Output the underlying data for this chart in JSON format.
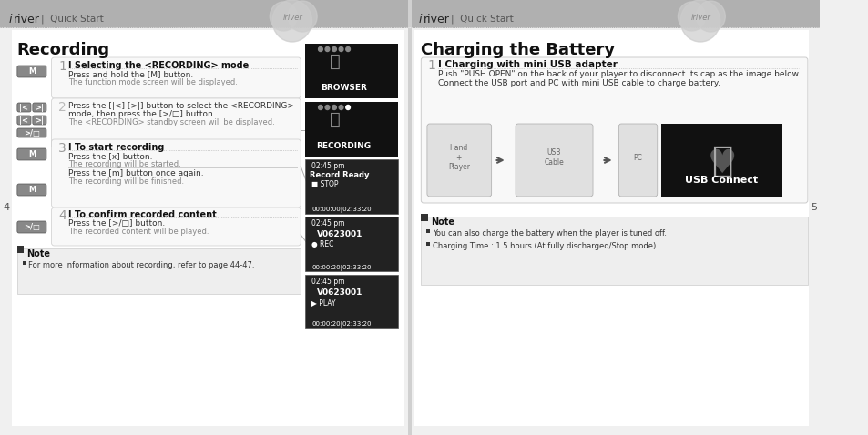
{
  "bg_color": "#f0f0f0",
  "header_color": "#a0a0a0",
  "header_text_color": "#333333",
  "page_bg": "#ffffff",
  "left_page_num": "4",
  "right_page_num": "5",
  "brand": "iriver",
  "header_subtitle": "Quick Start",
  "left_title": "Recording",
  "right_title": "Charging the Battery",
  "left_steps": [
    {
      "num": "1",
      "header": "I Selecting the <RECORDING> mode",
      "lines": [
        "Press and hold the [M] button.",
        "The function mode screen will be displayed."
      ]
    },
    {
      "num": "2",
      "header": null,
      "lines": [
        "Press the [|<] [>|] button to select the <RECORDING>",
        "mode, then press the [>/□] button.",
        "The <RECORDING> standby screen will be displayed."
      ]
    },
    {
      "num": "3",
      "header": "I To start recording",
      "lines": [
        "Press the [x] button.",
        "The recording will be started.",
        "",
        "Press the [m] button once again.",
        "The recording will be finished."
      ]
    },
    {
      "num": "4",
      "header": "I To confirm recorded content",
      "lines": [
        "Press the [>/□] button.",
        "The recorded content will be played."
      ]
    }
  ],
  "left_note": "Note",
  "left_note_bullet": "For more information about recording, refer to page 44-47.",
  "right_step": {
    "num": "1",
    "header": "I Charging with mini USB adapter",
    "lines": [
      "Push \"PUSH OPEN\" on the back of your player to disconnect its cap as the image below.",
      "Connect the USB port and PC with mini USB cable to charge battery."
    ]
  },
  "right_note": "Note",
  "right_note_bullets": [
    "You can also charge the battery when the player is tuned off.",
    "Charging Time : 1.5 hours (At fully discharged/Stop mode)"
  ]
}
